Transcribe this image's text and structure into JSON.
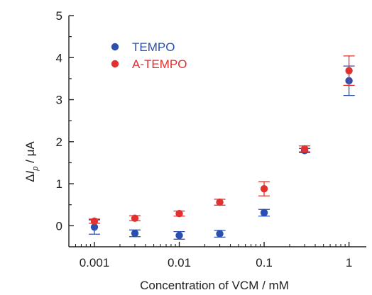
{
  "chart_data": {
    "type": "scatter",
    "x_scale": "log",
    "xlim": [
      0.0005,
      1.6
    ],
    "ylim": [
      -0.5,
      5
    ],
    "x_ticks": [
      0.001,
      0.01,
      0.1,
      1
    ],
    "x_tick_labels": [
      "0.001",
      "0.01",
      "0.1",
      "1"
    ],
    "y_ticks": [
      0,
      1,
      2,
      3,
      4,
      5
    ],
    "y_tick_labels": [
      "0",
      "1",
      "2",
      "3",
      "4",
      "5"
    ],
    "xlabel": "Concentration of VCM / mM",
    "ylabel_prefix": "Δ",
    "ylabel_var": "I",
    "ylabel_sub": "p",
    "ylabel_suffix": " / μA",
    "legend_position": "top-left",
    "grid": false,
    "series": [
      {
        "name": "TEMPO",
        "color": "#2a4fb0",
        "x": [
          0.001,
          0.003,
          0.01,
          0.03,
          0.1,
          0.3,
          1
        ],
        "y": [
          -0.03,
          -0.18,
          -0.23,
          -0.19,
          0.31,
          1.79,
          3.45
        ],
        "err": [
          0.17,
          0.08,
          0.09,
          0.08,
          0.08,
          0.05,
          0.35
        ]
      },
      {
        "name": "A-TEMPO",
        "color": "#e2302f",
        "x": [
          0.001,
          0.003,
          0.01,
          0.03,
          0.1,
          0.3,
          1
        ],
        "y": [
          0.11,
          0.18,
          0.29,
          0.56,
          0.88,
          1.83,
          3.69
        ],
        "err": [
          0.05,
          0.06,
          0.06,
          0.07,
          0.17,
          0.07,
          0.35
        ]
      }
    ]
  }
}
